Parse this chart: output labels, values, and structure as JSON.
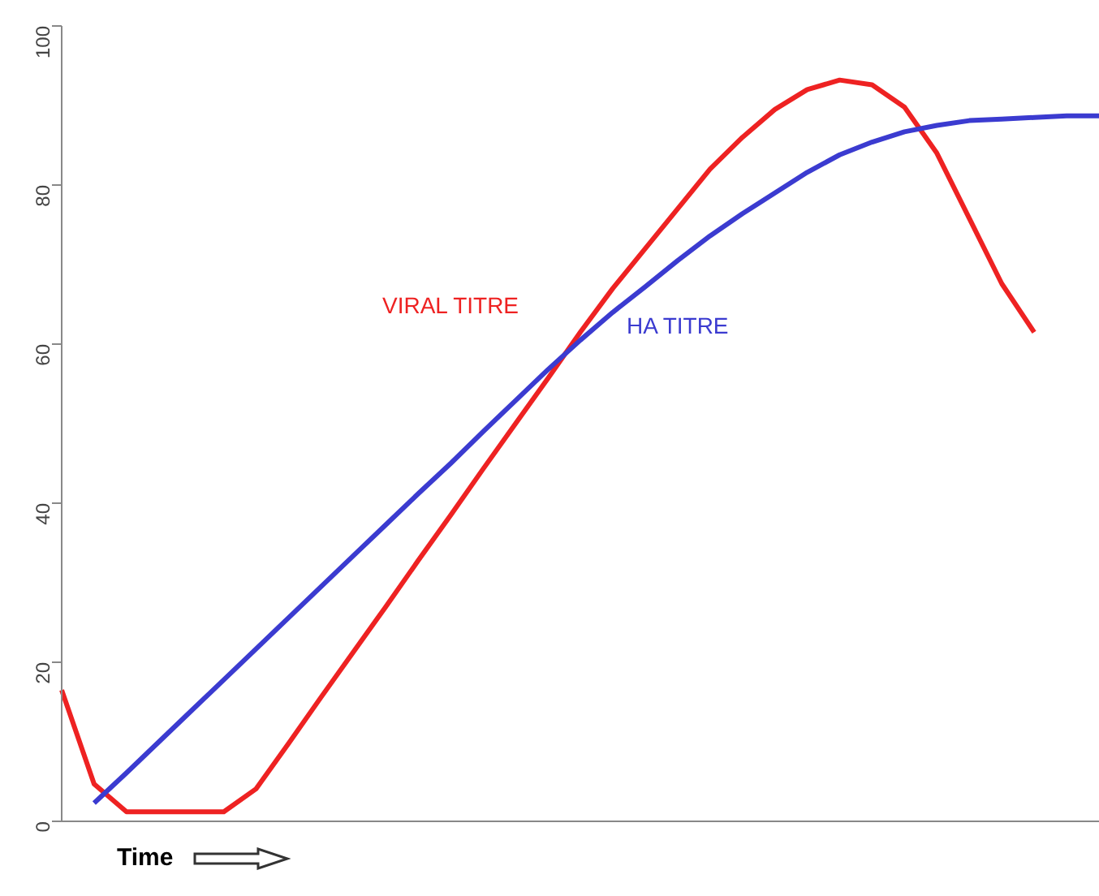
{
  "chart_data": {
    "type": "line",
    "xlabel": "Time",
    "categories": [
      null,
      null,
      null,
      null,
      null,
      null,
      null,
      null,
      null,
      null,
      null,
      null,
      null,
      null,
      null,
      null,
      null,
      null,
      null,
      null,
      null,
      null,
      null,
      null,
      null,
      null,
      null,
      null,
      null,
      null,
      null,
      null,
      null
    ],
    "series": [
      {
        "name": "VIRAL TITRE",
        "color": "#ee2222",
        "values": [
          16.5,
          4.7,
          1.2,
          1.2,
          1.2,
          1.2,
          4.1,
          9.8,
          15.6,
          21.3,
          27,
          32.8,
          38.5,
          44.3,
          50,
          55.7,
          61.5,
          67,
          72,
          77,
          82,
          86,
          89.5,
          92,
          93.2,
          92.6,
          89.8,
          84,
          75.8,
          67.6,
          61.5,
          null,
          null
        ]
      },
      {
        "name": "HA TITRE",
        "color": "#3b3bd0",
        "values": [
          null,
          2.3,
          6.1,
          10,
          13.9,
          17.8,
          21.7,
          25.6,
          29.5,
          33.4,
          37.3,
          41.2,
          45,
          49,
          52.9,
          56.8,
          60.5,
          64,
          67.2,
          70.5,
          73.6,
          76.4,
          79,
          81.6,
          83.8,
          85.4,
          86.7,
          87.5,
          88.1,
          88.3,
          88.5,
          88.7,
          88.7
        ]
      }
    ],
    "ylim": [
      0,
      100
    ],
    "yticks": [
      0,
      20,
      40,
      60,
      80,
      100
    ],
    "tick_labels": "y",
    "grid": false,
    "legend": false,
    "marker": "none",
    "line_style": "solid"
  }
}
